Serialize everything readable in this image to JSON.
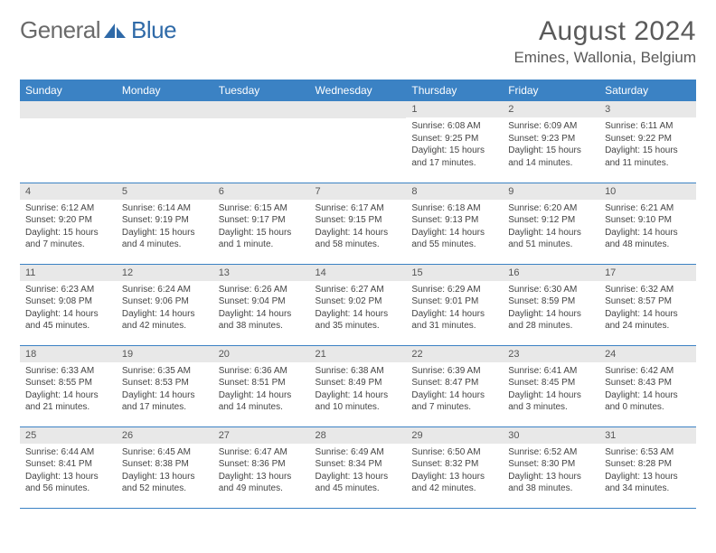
{
  "logo": {
    "part1": "General",
    "part2": "Blue"
  },
  "title": "August 2024",
  "location": "Emines, Wallonia, Belgium",
  "headers": [
    "Sunday",
    "Monday",
    "Tuesday",
    "Wednesday",
    "Thursday",
    "Friday",
    "Saturday"
  ],
  "colors": {
    "header_bg": "#3b82c4",
    "header_text": "#ffffff",
    "daynum_bg": "#e8e8e8",
    "border": "#3b82c4",
    "logo_gray": "#6a6a6a",
    "logo_blue": "#2f6aa8"
  },
  "weeks": [
    [
      {
        "n": "",
        "sr": "",
        "ss": "",
        "dl": ""
      },
      {
        "n": "",
        "sr": "",
        "ss": "",
        "dl": ""
      },
      {
        "n": "",
        "sr": "",
        "ss": "",
        "dl": ""
      },
      {
        "n": "",
        "sr": "",
        "ss": "",
        "dl": ""
      },
      {
        "n": "1",
        "sr": "Sunrise: 6:08 AM",
        "ss": "Sunset: 9:25 PM",
        "dl": "Daylight: 15 hours and 17 minutes."
      },
      {
        "n": "2",
        "sr": "Sunrise: 6:09 AM",
        "ss": "Sunset: 9:23 PM",
        "dl": "Daylight: 15 hours and 14 minutes."
      },
      {
        "n": "3",
        "sr": "Sunrise: 6:11 AM",
        "ss": "Sunset: 9:22 PM",
        "dl": "Daylight: 15 hours and 11 minutes."
      }
    ],
    [
      {
        "n": "4",
        "sr": "Sunrise: 6:12 AM",
        "ss": "Sunset: 9:20 PM",
        "dl": "Daylight: 15 hours and 7 minutes."
      },
      {
        "n": "5",
        "sr": "Sunrise: 6:14 AM",
        "ss": "Sunset: 9:19 PM",
        "dl": "Daylight: 15 hours and 4 minutes."
      },
      {
        "n": "6",
        "sr": "Sunrise: 6:15 AM",
        "ss": "Sunset: 9:17 PM",
        "dl": "Daylight: 15 hours and 1 minute."
      },
      {
        "n": "7",
        "sr": "Sunrise: 6:17 AM",
        "ss": "Sunset: 9:15 PM",
        "dl": "Daylight: 14 hours and 58 minutes."
      },
      {
        "n": "8",
        "sr": "Sunrise: 6:18 AM",
        "ss": "Sunset: 9:13 PM",
        "dl": "Daylight: 14 hours and 55 minutes."
      },
      {
        "n": "9",
        "sr": "Sunrise: 6:20 AM",
        "ss": "Sunset: 9:12 PM",
        "dl": "Daylight: 14 hours and 51 minutes."
      },
      {
        "n": "10",
        "sr": "Sunrise: 6:21 AM",
        "ss": "Sunset: 9:10 PM",
        "dl": "Daylight: 14 hours and 48 minutes."
      }
    ],
    [
      {
        "n": "11",
        "sr": "Sunrise: 6:23 AM",
        "ss": "Sunset: 9:08 PM",
        "dl": "Daylight: 14 hours and 45 minutes."
      },
      {
        "n": "12",
        "sr": "Sunrise: 6:24 AM",
        "ss": "Sunset: 9:06 PM",
        "dl": "Daylight: 14 hours and 42 minutes."
      },
      {
        "n": "13",
        "sr": "Sunrise: 6:26 AM",
        "ss": "Sunset: 9:04 PM",
        "dl": "Daylight: 14 hours and 38 minutes."
      },
      {
        "n": "14",
        "sr": "Sunrise: 6:27 AM",
        "ss": "Sunset: 9:02 PM",
        "dl": "Daylight: 14 hours and 35 minutes."
      },
      {
        "n": "15",
        "sr": "Sunrise: 6:29 AM",
        "ss": "Sunset: 9:01 PM",
        "dl": "Daylight: 14 hours and 31 minutes."
      },
      {
        "n": "16",
        "sr": "Sunrise: 6:30 AM",
        "ss": "Sunset: 8:59 PM",
        "dl": "Daylight: 14 hours and 28 minutes."
      },
      {
        "n": "17",
        "sr": "Sunrise: 6:32 AM",
        "ss": "Sunset: 8:57 PM",
        "dl": "Daylight: 14 hours and 24 minutes."
      }
    ],
    [
      {
        "n": "18",
        "sr": "Sunrise: 6:33 AM",
        "ss": "Sunset: 8:55 PM",
        "dl": "Daylight: 14 hours and 21 minutes."
      },
      {
        "n": "19",
        "sr": "Sunrise: 6:35 AM",
        "ss": "Sunset: 8:53 PM",
        "dl": "Daylight: 14 hours and 17 minutes."
      },
      {
        "n": "20",
        "sr": "Sunrise: 6:36 AM",
        "ss": "Sunset: 8:51 PM",
        "dl": "Daylight: 14 hours and 14 minutes."
      },
      {
        "n": "21",
        "sr": "Sunrise: 6:38 AM",
        "ss": "Sunset: 8:49 PM",
        "dl": "Daylight: 14 hours and 10 minutes."
      },
      {
        "n": "22",
        "sr": "Sunrise: 6:39 AM",
        "ss": "Sunset: 8:47 PM",
        "dl": "Daylight: 14 hours and 7 minutes."
      },
      {
        "n": "23",
        "sr": "Sunrise: 6:41 AM",
        "ss": "Sunset: 8:45 PM",
        "dl": "Daylight: 14 hours and 3 minutes."
      },
      {
        "n": "24",
        "sr": "Sunrise: 6:42 AM",
        "ss": "Sunset: 8:43 PM",
        "dl": "Daylight: 14 hours and 0 minutes."
      }
    ],
    [
      {
        "n": "25",
        "sr": "Sunrise: 6:44 AM",
        "ss": "Sunset: 8:41 PM",
        "dl": "Daylight: 13 hours and 56 minutes."
      },
      {
        "n": "26",
        "sr": "Sunrise: 6:45 AM",
        "ss": "Sunset: 8:38 PM",
        "dl": "Daylight: 13 hours and 52 minutes."
      },
      {
        "n": "27",
        "sr": "Sunrise: 6:47 AM",
        "ss": "Sunset: 8:36 PM",
        "dl": "Daylight: 13 hours and 49 minutes."
      },
      {
        "n": "28",
        "sr": "Sunrise: 6:49 AM",
        "ss": "Sunset: 8:34 PM",
        "dl": "Daylight: 13 hours and 45 minutes."
      },
      {
        "n": "29",
        "sr": "Sunrise: 6:50 AM",
        "ss": "Sunset: 8:32 PM",
        "dl": "Daylight: 13 hours and 42 minutes."
      },
      {
        "n": "30",
        "sr": "Sunrise: 6:52 AM",
        "ss": "Sunset: 8:30 PM",
        "dl": "Daylight: 13 hours and 38 minutes."
      },
      {
        "n": "31",
        "sr": "Sunrise: 6:53 AM",
        "ss": "Sunset: 8:28 PM",
        "dl": "Daylight: 13 hours and 34 minutes."
      }
    ]
  ]
}
